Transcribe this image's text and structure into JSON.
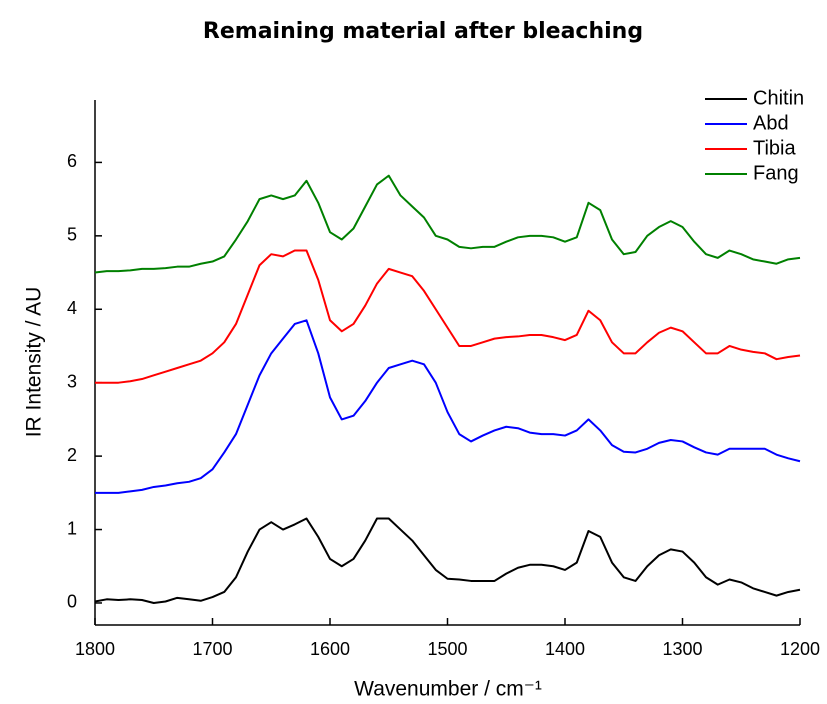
{
  "chart_data": {
    "type": "line",
    "title": "Remaining material after bleaching",
    "x_label": "Wavenumber / cm⁻¹",
    "y_label": "IR Intensity / AU",
    "x": [
      1800,
      1790,
      1780,
      1770,
      1760,
      1750,
      1740,
      1730,
      1720,
      1710,
      1700,
      1690,
      1680,
      1670,
      1660,
      1650,
      1640,
      1630,
      1620,
      1610,
      1600,
      1590,
      1580,
      1570,
      1560,
      1550,
      1540,
      1530,
      1520,
      1510,
      1500,
      1490,
      1480,
      1470,
      1460,
      1450,
      1440,
      1430,
      1420,
      1410,
      1400,
      1390,
      1380,
      1370,
      1360,
      1350,
      1340,
      1330,
      1320,
      1310,
      1300,
      1290,
      1280,
      1270,
      1260,
      1250,
      1240,
      1230,
      1220,
      1210,
      1200
    ],
    "series": [
      {
        "name": "Chitin",
        "color": "#000000",
        "values": [
          0.02,
          0.05,
          0.04,
          0.05,
          0.04,
          0.0,
          0.02,
          0.07,
          0.05,
          0.03,
          0.08,
          0.15,
          0.35,
          0.7,
          1.0,
          1.1,
          1.0,
          1.07,
          1.15,
          0.9,
          0.6,
          0.5,
          0.6,
          0.85,
          1.15,
          1.15,
          1.0,
          0.85,
          0.65,
          0.45,
          0.33,
          0.32,
          0.3,
          0.3,
          0.3,
          0.4,
          0.48,
          0.52,
          0.52,
          0.5,
          0.45,
          0.55,
          0.98,
          0.9,
          0.55,
          0.35,
          0.3,
          0.5,
          0.65,
          0.73,
          0.7,
          0.55,
          0.35,
          0.25,
          0.32,
          0.28,
          0.2,
          0.15,
          0.1,
          0.15,
          0.18
        ]
      },
      {
        "name": "Abd",
        "color": "#0000ff",
        "values": [
          1.5,
          1.5,
          1.5,
          1.52,
          1.54,
          1.58,
          1.6,
          1.63,
          1.65,
          1.7,
          1.82,
          2.05,
          2.3,
          2.7,
          3.1,
          3.4,
          3.6,
          3.8,
          3.85,
          3.4,
          2.8,
          2.5,
          2.55,
          2.75,
          3.0,
          3.2,
          3.25,
          3.3,
          3.25,
          3.0,
          2.6,
          2.3,
          2.2,
          2.28,
          2.35,
          2.4,
          2.38,
          2.32,
          2.3,
          2.3,
          2.28,
          2.35,
          2.5,
          2.35,
          2.15,
          2.06,
          2.05,
          2.1,
          2.18,
          2.22,
          2.2,
          2.12,
          2.05,
          2.02,
          2.1,
          2.1,
          2.1,
          2.1,
          2.02,
          1.97,
          1.93
        ]
      },
      {
        "name": "Tibia",
        "color": "#ff0000",
        "values": [
          3.0,
          3.0,
          3.0,
          3.02,
          3.05,
          3.1,
          3.15,
          3.2,
          3.25,
          3.3,
          3.4,
          3.55,
          3.8,
          4.2,
          4.6,
          4.75,
          4.72,
          4.8,
          4.8,
          4.4,
          3.85,
          3.7,
          3.8,
          4.05,
          4.35,
          4.55,
          4.5,
          4.45,
          4.25,
          4.0,
          3.75,
          3.5,
          3.5,
          3.55,
          3.6,
          3.62,
          3.63,
          3.65,
          3.65,
          3.62,
          3.58,
          3.65,
          3.98,
          3.85,
          3.55,
          3.4,
          3.4,
          3.55,
          3.68,
          3.75,
          3.7,
          3.55,
          3.4,
          3.4,
          3.5,
          3.45,
          3.42,
          3.4,
          3.32,
          3.35,
          3.37
        ]
      },
      {
        "name": "Fang",
        "color": "#008000",
        "values": [
          4.5,
          4.52,
          4.52,
          4.53,
          4.55,
          4.55,
          4.56,
          4.58,
          4.58,
          4.62,
          4.65,
          4.72,
          4.95,
          5.2,
          5.5,
          5.55,
          5.5,
          5.55,
          5.75,
          5.45,
          5.05,
          4.95,
          5.1,
          5.4,
          5.7,
          5.82,
          5.55,
          5.4,
          5.25,
          5.0,
          4.95,
          4.85,
          4.83,
          4.85,
          4.85,
          4.92,
          4.98,
          5.0,
          5.0,
          4.98,
          4.92,
          4.98,
          5.45,
          5.35,
          4.95,
          4.75,
          4.78,
          5.0,
          5.12,
          5.2,
          5.12,
          4.92,
          4.75,
          4.7,
          4.8,
          4.75,
          4.68,
          4.65,
          4.62,
          4.68,
          4.7
        ]
      }
    ],
    "xlim": [
      1800,
      1200
    ],
    "xticks": [
      1800,
      1700,
      1600,
      1500,
      1400,
      1300,
      1200
    ],
    "ylim": [
      -0.3,
      6.85
    ],
    "yticks": [
      0,
      1,
      2,
      3,
      4,
      5,
      6
    ],
    "legend": "upper right",
    "grid": false
  }
}
